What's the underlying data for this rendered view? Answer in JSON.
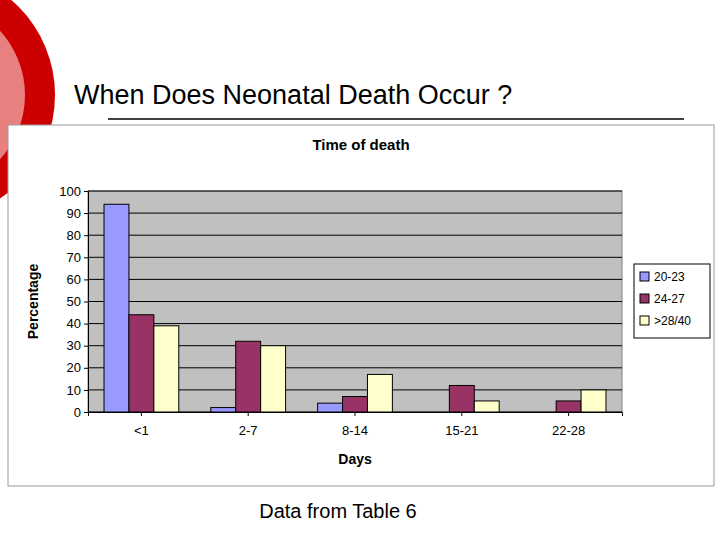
{
  "page": {
    "title": "When Does Neonatal Death Occur ?",
    "caption": "Data from Table 6"
  },
  "chart_data": {
    "type": "bar",
    "title": "Time of death",
    "x_label": "Days",
    "y_label": "Percentage",
    "categories": [
      "<1",
      "2-7",
      "8-14",
      "15-21",
      "22-28"
    ],
    "series": [
      {
        "name": "20-23",
        "color": "#9999ff",
        "values": [
          94,
          2,
          4,
          0,
          0
        ]
      },
      {
        "name": "24-27",
        "color": "#993366",
        "values": [
          44,
          32,
          7,
          12,
          5
        ]
      },
      {
        "name": ">28/40",
        "color": "#ffffcc",
        "values": [
          39,
          30,
          17,
          5,
          10
        ]
      }
    ],
    "ylim": [
      0,
      100
    ],
    "yticks": [
      0,
      10,
      20,
      30,
      40,
      50,
      60,
      70,
      80,
      90,
      100
    ],
    "grid": true,
    "legend": "right"
  }
}
